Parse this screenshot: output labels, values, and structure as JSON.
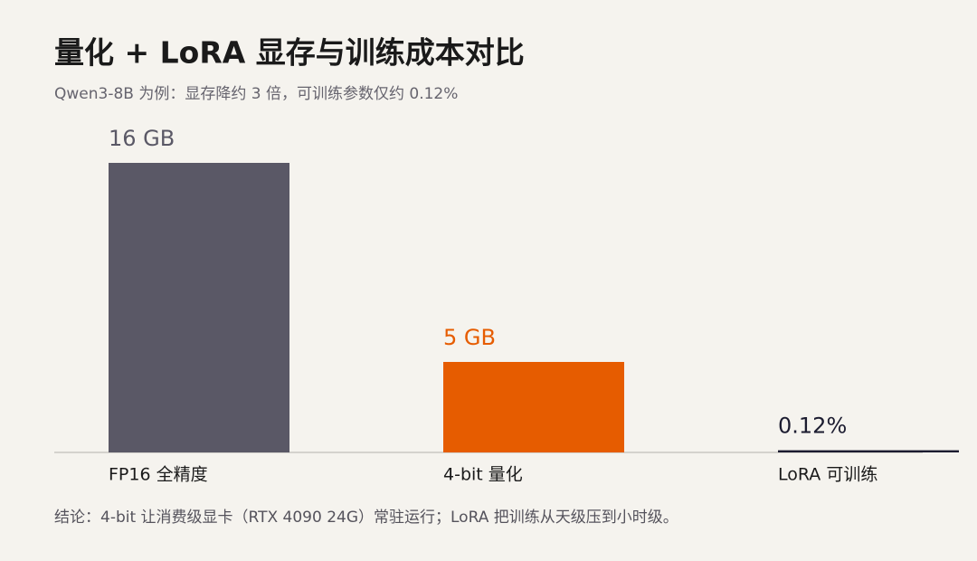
{
  "chart_data": {
    "type": "bar",
    "title": "量化 + LoRA 显存与训练成本对比",
    "subtitle": "Qwen3-8B 为例：显存降约 3 倍，可训练参数仅约 0.12%",
    "categories": [
      "FP16 全精度",
      "4-bit 量化",
      "LoRA 可训练"
    ],
    "values": [
      16,
      5,
      0.12
    ],
    "value_labels": [
      "16 GB",
      "5 GB",
      "0.12%"
    ],
    "colors": [
      "#5a5866",
      "#e65c00",
      "#1c1c30"
    ],
    "ylim": [
      0,
      16
    ],
    "footnote": "结论：4-bit 让消费级显卡（RTX 4090 24G）常驻运行；LoRA 把训练从天级压到小时级。"
  }
}
